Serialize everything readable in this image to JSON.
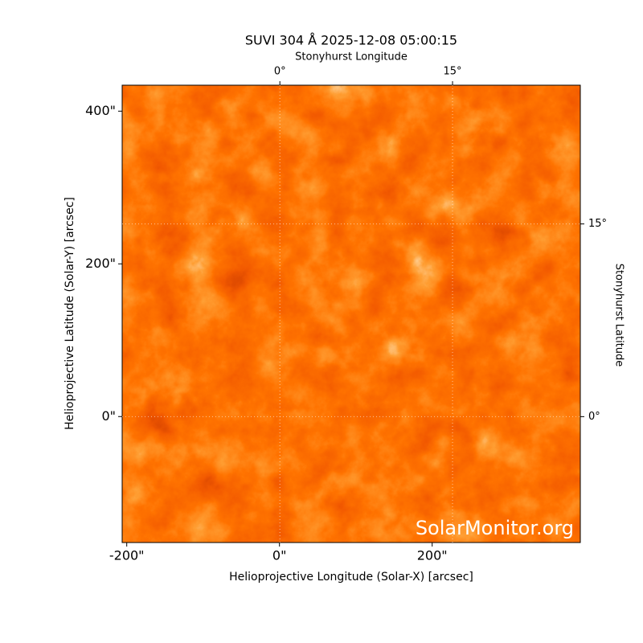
{
  "chart_data": {
    "type": "image",
    "title": "SUVI 304 Å 2025-12-08 05:00:15",
    "x_label": "Helioprojective Longitude (Solar-X) [arcsec]",
    "y_label": "Helioprojective Latitude (Solar-Y) [arcsec]",
    "x2_label": "Stonyhurst Longitude",
    "y2_label": "Stonyhurst Latitude",
    "watermark": "SolarMonitor.org",
    "xlim": [
      -206,
      394
    ],
    "ylim": [
      -165,
      434
    ],
    "xticks": [
      {
        "value": -200,
        "label": "-200\""
      },
      {
        "value": 0,
        "label": "0\""
      },
      {
        "value": 200,
        "label": "200\""
      }
    ],
    "yticks": [
      {
        "value": 0,
        "label": "0\""
      },
      {
        "value": 200,
        "label": "200\""
      },
      {
        "value": 400,
        "label": "400\""
      }
    ],
    "x2lim": [
      -13.7,
      26.1
    ],
    "x2ticks": [
      {
        "value": 0,
        "label": "0°"
      },
      {
        "value": 15,
        "label": "15°"
      }
    ],
    "y2lim": [
      -9.8,
      25.8
    ],
    "y2ticks": [
      {
        "value": 0,
        "label": "0°"
      },
      {
        "value": 15,
        "label": "15°"
      }
    ],
    "grid": true
  }
}
